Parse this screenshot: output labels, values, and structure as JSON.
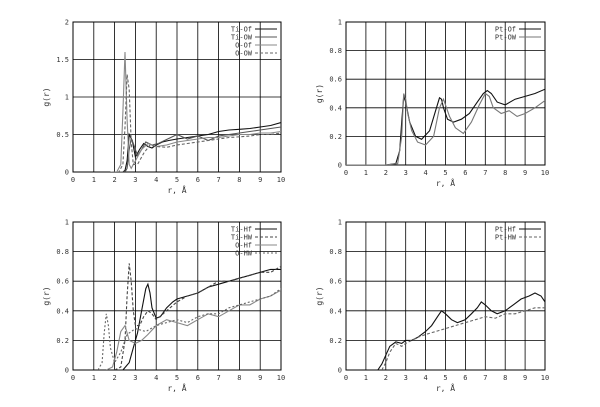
{
  "chart_data": [
    {
      "type": "line",
      "xlabel": "r, Å",
      "ylabel": "g(r)",
      "xlim": [
        0,
        10
      ],
      "ylim": [
        0,
        2
      ],
      "xticks": [
        "0",
        "1",
        "2",
        "3",
        "4",
        "5",
        "6",
        "7",
        "8",
        "9",
        "10"
      ],
      "yticks": [
        "0",
        "0.5",
        "1",
        "1.5",
        "2"
      ],
      "grid": true,
      "legend_position": "top-right",
      "series": [
        {
          "name": "Ti-Of",
          "color": "#111111",
          "dash": "",
          "x": [
            2.0,
            2.2,
            2.4,
            2.5,
            2.6,
            2.7,
            2.85,
            3.0,
            3.2,
            3.4,
            3.6,
            3.8,
            4.0,
            4.3,
            4.6,
            5.0,
            5.5,
            6.0,
            6.5,
            7.0,
            7.5,
            8.0,
            8.5,
            9.0,
            9.5,
            10.0
          ],
          "y": [
            0,
            0,
            0,
            0.02,
            0.15,
            0.5,
            0.42,
            0.2,
            0.3,
            0.38,
            0.34,
            0.32,
            0.36,
            0.4,
            0.42,
            0.44,
            0.46,
            0.48,
            0.5,
            0.54,
            0.56,
            0.57,
            0.58,
            0.6,
            0.62,
            0.66
          ]
        },
        {
          "name": "Ti-OW",
          "color": "#555555",
          "dash": "",
          "x": [
            2.0,
            2.3,
            2.5,
            2.6,
            2.7,
            2.8,
            2.9,
            3.1,
            3.3,
            3.5,
            3.8,
            4.1,
            4.4,
            4.7,
            5.0,
            5.5,
            6.0,
            6.5,
            7.0,
            7.5,
            8.0,
            8.5,
            9.0,
            9.5,
            10.0
          ],
          "y": [
            0,
            0,
            0,
            0.05,
            0.3,
            0.45,
            0.38,
            0.22,
            0.3,
            0.4,
            0.36,
            0.38,
            0.42,
            0.46,
            0.5,
            0.44,
            0.48,
            0.42,
            0.48,
            0.5,
            0.52,
            0.54,
            0.56,
            0.58,
            0.6
          ]
        },
        {
          "name": "O-Of",
          "color": "#888888",
          "dash": "",
          "x": [
            1.8,
            2.1,
            2.3,
            2.4,
            2.5,
            2.6,
            2.7,
            2.8,
            3.0,
            3.3,
            3.6,
            4.0,
            4.5,
            5.0,
            5.5,
            6.0,
            6.5,
            7.0,
            7.5,
            8.0,
            8.5,
            9.0,
            9.5,
            10.0
          ],
          "y": [
            0,
            0,
            0.1,
            0.8,
            1.6,
            0.7,
            0.1,
            0.05,
            0.15,
            0.3,
            0.38,
            0.34,
            0.36,
            0.4,
            0.42,
            0.44,
            0.46,
            0.46,
            0.48,
            0.5,
            0.5,
            0.52,
            0.52,
            0.54
          ]
        },
        {
          "name": "O-OW",
          "color": "#666666",
          "dash": "3,2",
          "x": [
            1.9,
            2.2,
            2.4,
            2.5,
            2.6,
            2.7,
            2.8,
            2.9,
            3.1,
            3.4,
            3.7,
            4.0,
            4.5,
            5.0,
            5.5,
            6.0,
            6.5,
            7.0,
            7.5,
            8.0,
            8.5,
            9.0,
            9.5,
            10.0
          ],
          "y": [
            0,
            0,
            0.1,
            0.6,
            1.3,
            1.1,
            0.4,
            0.1,
            0.1,
            0.25,
            0.36,
            0.34,
            0.33,
            0.36,
            0.38,
            0.4,
            0.42,
            0.44,
            0.46,
            0.47,
            0.48,
            0.5,
            0.5,
            0.52
          ]
        }
      ]
    },
    {
      "type": "line",
      "xlabel": "r, Å",
      "ylabel": "g(r)",
      "xlim": [
        0,
        10
      ],
      "ylim": [
        0,
        1
      ],
      "xticks": [
        "0",
        "1",
        "2",
        "3",
        "4",
        "5",
        "6",
        "7",
        "8",
        "9",
        "10"
      ],
      "yticks": [
        "0",
        "0.2",
        "0.4",
        "0.6",
        "0.8",
        "1"
      ],
      "grid": true,
      "legend_position": "top-right",
      "series": [
        {
          "name": "Pt-Of",
          "color": "#111111",
          "dash": "",
          "x": [
            0,
            1,
            2,
            2.5,
            2.7,
            2.8,
            2.9,
            3.0,
            3.2,
            3.5,
            3.8,
            4.2,
            4.5,
            4.7,
            4.8,
            4.9,
            5.1,
            5.4,
            5.8,
            6.2,
            6.6,
            6.9,
            7.1,
            7.3,
            7.6,
            8.0,
            8.5,
            9.0,
            9.5,
            10.0
          ],
          "y": [
            0,
            0,
            0,
            0.01,
            0.1,
            0.3,
            0.48,
            0.44,
            0.3,
            0.2,
            0.18,
            0.24,
            0.38,
            0.47,
            0.46,
            0.4,
            0.32,
            0.3,
            0.32,
            0.36,
            0.44,
            0.5,
            0.52,
            0.5,
            0.44,
            0.42,
            0.46,
            0.48,
            0.5,
            0.53
          ]
        },
        {
          "name": "Pt-OW",
          "color": "#777777",
          "dash": "",
          "x": [
            0,
            1,
            2,
            2.6,
            2.8,
            2.9,
            3.0,
            3.1,
            3.3,
            3.6,
            4.0,
            4.4,
            4.7,
            4.9,
            5.0,
            5.2,
            5.5,
            5.9,
            6.3,
            6.7,
            7.0,
            7.2,
            7.4,
            7.8,
            8.2,
            8.6,
            9.0,
            9.5,
            10.0
          ],
          "y": [
            0,
            0,
            0,
            0.01,
            0.2,
            0.5,
            0.46,
            0.36,
            0.24,
            0.16,
            0.14,
            0.2,
            0.4,
            0.46,
            0.42,
            0.34,
            0.26,
            0.22,
            0.3,
            0.42,
            0.5,
            0.48,
            0.4,
            0.36,
            0.38,
            0.34,
            0.36,
            0.4,
            0.45
          ]
        }
      ]
    },
    {
      "type": "line",
      "xlabel": "r, Å",
      "ylabel": "g(r)",
      "xlim": [
        0,
        10
      ],
      "ylim": [
        0,
        1
      ],
      "xticks": [
        "0",
        "1",
        "2",
        "3",
        "4",
        "5",
        "6",
        "7",
        "8",
        "9",
        "10"
      ],
      "yticks": [
        "0",
        "0.2",
        "0.4",
        "0.6",
        "0.8",
        "1"
      ],
      "grid": true,
      "legend_position": "top-right",
      "series": [
        {
          "name": "Ti-Hf",
          "color": "#111111",
          "dash": "",
          "x": [
            2.0,
            2.4,
            2.7,
            2.9,
            3.1,
            3.3,
            3.5,
            3.6,
            3.7,
            3.8,
            4.0,
            4.2,
            4.5,
            4.8,
            5.0,
            5.5,
            6.0,
            6.5,
            7.0,
            7.5,
            8.0,
            8.5,
            9.0,
            9.5,
            10.0
          ],
          "y": [
            0,
            0,
            0.05,
            0.15,
            0.25,
            0.4,
            0.55,
            0.58,
            0.52,
            0.42,
            0.35,
            0.36,
            0.42,
            0.46,
            0.48,
            0.5,
            0.52,
            0.56,
            0.58,
            0.6,
            0.62,
            0.64,
            0.66,
            0.68,
            0.68
          ]
        },
        {
          "name": "Ti-HW",
          "color": "#444444",
          "dash": "3,2",
          "x": [
            2.0,
            2.3,
            2.5,
            2.6,
            2.7,
            2.8,
            2.9,
            3.0,
            3.2,
            3.4,
            3.6,
            3.8,
            4.0,
            4.5,
            5.0,
            5.5,
            6.0,
            6.5,
            7.0,
            7.5,
            8.0,
            8.5,
            9.0,
            9.5,
            10.0
          ],
          "y": [
            0,
            0.02,
            0.2,
            0.5,
            0.72,
            0.6,
            0.4,
            0.3,
            0.3,
            0.36,
            0.4,
            0.38,
            0.34,
            0.4,
            0.46,
            0.5,
            0.52,
            0.56,
            0.6,
            0.6,
            0.62,
            0.64,
            0.66,
            0.66,
            0.7
          ]
        },
        {
          "name": "O-Hf",
          "color": "#888888",
          "dash": "",
          "x": [
            1.6,
            1.9,
            2.1,
            2.3,
            2.5,
            2.7,
            3.0,
            3.3,
            3.6,
            4.0,
            4.5,
            5.0,
            5.5,
            6.0,
            6.5,
            7.0,
            7.5,
            8.0,
            8.5,
            9.0,
            9.5,
            10.0
          ],
          "y": [
            0,
            0.02,
            0.12,
            0.26,
            0.3,
            0.2,
            0.18,
            0.2,
            0.24,
            0.3,
            0.34,
            0.32,
            0.3,
            0.34,
            0.38,
            0.36,
            0.4,
            0.44,
            0.44,
            0.48,
            0.5,
            0.54
          ]
        },
        {
          "name": "O-HW",
          "color": "#666666",
          "dash": "2,2",
          "x": [
            1.2,
            1.4,
            1.5,
            1.6,
            1.7,
            1.8,
            2.0,
            2.3,
            2.6,
            3.0,
            3.5,
            4.0,
            4.5,
            5.0,
            5.5,
            6.0,
            6.5,
            7.0,
            7.5,
            8.0,
            8.5,
            9.0,
            9.5,
            10.0
          ],
          "y": [
            0,
            0.05,
            0.25,
            0.38,
            0.3,
            0.15,
            0.05,
            0.12,
            0.24,
            0.28,
            0.26,
            0.3,
            0.32,
            0.34,
            0.32,
            0.36,
            0.38,
            0.38,
            0.42,
            0.44,
            0.46,
            0.48,
            0.5,
            0.55
          ]
        }
      ]
    },
    {
      "type": "line",
      "xlabel": "r, Å",
      "ylabel": "g(r)",
      "xlim": [
        0,
        10
      ],
      "ylim": [
        0,
        1
      ],
      "xticks": [
        "0",
        "1",
        "2",
        "3",
        "4",
        "5",
        "6",
        "7",
        "8",
        "9",
        "10"
      ],
      "yticks": [
        "0",
        "0.2",
        "0.4",
        "0.6",
        "0.8",
        "1"
      ],
      "grid": true,
      "legend_position": "top-right",
      "series": [
        {
          "name": "Pt-Hf",
          "color": "#111111",
          "dash": "",
          "x": [
            1.6,
            1.8,
            2.0,
            2.2,
            2.5,
            2.8,
            3.0,
            3.3,
            3.6,
            4.0,
            4.3,
            4.6,
            4.8,
            5.0,
            5.3,
            5.6,
            6.0,
            6.3,
            6.6,
            6.8,
            7.0,
            7.3,
            7.6,
            8.0,
            8.4,
            8.8,
            9.2,
            9.5,
            9.8,
            10.0
          ],
          "y": [
            0,
            0.04,
            0.1,
            0.16,
            0.19,
            0.18,
            0.2,
            0.2,
            0.22,
            0.26,
            0.3,
            0.36,
            0.4,
            0.38,
            0.34,
            0.32,
            0.34,
            0.38,
            0.42,
            0.46,
            0.44,
            0.4,
            0.38,
            0.4,
            0.44,
            0.48,
            0.5,
            0.52,
            0.5,
            0.46
          ]
        },
        {
          "name": "Pt-HW",
          "color": "#666666",
          "dash": "3,2",
          "x": [
            1.8,
            2.0,
            2.2,
            2.5,
            2.8,
            3.0,
            3.3,
            3.6,
            4.0,
            4.5,
            5.0,
            5.5,
            6.0,
            6.5,
            7.0,
            7.5,
            8.0,
            8.5,
            9.0,
            9.5,
            10.0
          ],
          "y": [
            0,
            0.05,
            0.12,
            0.18,
            0.16,
            0.18,
            0.2,
            0.22,
            0.24,
            0.26,
            0.28,
            0.3,
            0.32,
            0.34,
            0.36,
            0.35,
            0.38,
            0.38,
            0.4,
            0.42,
            0.42
          ]
        }
      ]
    }
  ]
}
